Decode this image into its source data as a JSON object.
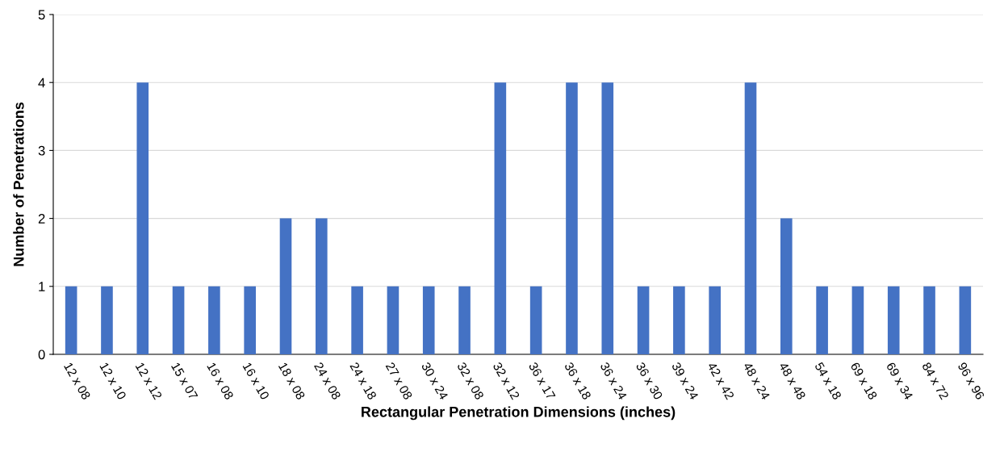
{
  "chart_data": {
    "type": "bar",
    "xlabel": "Rectangular Penetration Dimensions (inches)",
    "ylabel": "Number of Penetrations",
    "categories": [
      "12 x 08",
      "12 x 10",
      "12 x 12",
      "15 x 07",
      "16 x 08",
      "16 x 10",
      "18 x 08",
      "24 x 08",
      "24 x 18",
      "27 x 08",
      "30 x 24",
      "32 x 08",
      "32 x 12",
      "36 x 17",
      "36 x 18",
      "36 x 24",
      "36 x 30",
      "39 x 24",
      "42 x 42",
      "48 x 24",
      "48 x 48",
      "54 x 18",
      "69 x 18",
      "69 x 34",
      "84 x 72",
      "96 x 96"
    ],
    "values": [
      1,
      1,
      4,
      1,
      1,
      1,
      2,
      2,
      1,
      1,
      1,
      1,
      4,
      1,
      4,
      4,
      1,
      1,
      1,
      4,
      2,
      1,
      1,
      1,
      1,
      1
    ],
    "color": "#4472c4",
    "ylim": [
      0,
      5
    ],
    "yticks": [
      0,
      1,
      2,
      3,
      4,
      5
    ],
    "grid": "y"
  }
}
